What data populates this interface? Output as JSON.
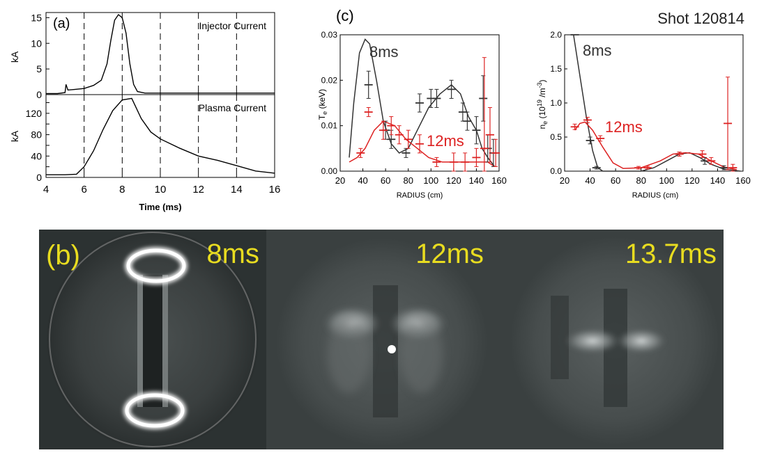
{
  "figure": {
    "shot_label": "Shot 120814"
  },
  "chart_data": [
    {
      "id": "a-top",
      "panel_label": "(a)",
      "type": "line",
      "annotation": "Injector Current",
      "ylabel": "kA",
      "xlim": [
        4,
        16
      ],
      "ylim": [
        0,
        16
      ],
      "yticks": [
        0,
        5,
        10,
        15
      ],
      "xticks": [
        4,
        6,
        8,
        10,
        12,
        14,
        16
      ],
      "vlines": [
        6,
        8,
        10,
        12,
        14
      ],
      "series": [
        {
          "values": [
            [
              4.0,
              0.2
            ],
            [
              4.6,
              0.2
            ],
            [
              5.0,
              0.4
            ],
            [
              5.05,
              2.0
            ],
            [
              5.15,
              0.9
            ],
            [
              5.5,
              1.0
            ],
            [
              6.0,
              1.2
            ],
            [
              6.5,
              1.8
            ],
            [
              6.9,
              2.8
            ],
            [
              7.2,
              6.0
            ],
            [
              7.4,
              10.5
            ],
            [
              7.6,
              14.5
            ],
            [
              7.8,
              15.6
            ],
            [
              8.0,
              15.0
            ],
            [
              8.2,
              12.0
            ],
            [
              8.4,
              6.0
            ],
            [
              8.6,
              2.0
            ],
            [
              8.8,
              0.6
            ],
            [
              9.2,
              0.3
            ],
            [
              10.0,
              0.3
            ],
            [
              12.0,
              0.3
            ],
            [
              14.0,
              0.3
            ],
            [
              16.0,
              0.3
            ]
          ]
        }
      ]
    },
    {
      "id": "a-bottom",
      "type": "line",
      "annotation": "Plasma Current",
      "ylabel": "kA",
      "xlabel": "Time (ms)",
      "xlim": [
        4,
        16
      ],
      "ylim": [
        0,
        155
      ],
      "yticks": [
        0,
        20,
        40,
        60,
        80,
        100,
        120,
        140
      ],
      "yticklabels": [
        "0",
        "",
        "40",
        "",
        "80",
        "",
        "120",
        ""
      ],
      "xticks": [
        4,
        6,
        8,
        10,
        12,
        14,
        16
      ],
      "xticklabels": [
        "4",
        "6",
        "8",
        "10",
        "12",
        "14",
        "16"
      ],
      "vlines": [
        6,
        8,
        10,
        12,
        14
      ],
      "series": [
        {
          "values": [
            [
              4.0,
              5
            ],
            [
              5.0,
              5
            ],
            [
              5.6,
              6
            ],
            [
              6.0,
              20
            ],
            [
              6.5,
              50
            ],
            [
              7.0,
              90
            ],
            [
              7.5,
              125
            ],
            [
              8.0,
              145
            ],
            [
              8.5,
              148
            ],
            [
              9.0,
              110
            ],
            [
              9.5,
              85
            ],
            [
              10.0,
              72
            ],
            [
              11.0,
              55
            ],
            [
              12.0,
              40
            ],
            [
              13.0,
              32
            ],
            [
              14.0,
              22
            ],
            [
              15.0,
              12
            ],
            [
              16.0,
              8
            ]
          ]
        }
      ]
    },
    {
      "id": "c-left",
      "panel_label": "(c)",
      "type": "line",
      "ylabel": "Te (keV)",
      "xlabel": "RADIUS (cm)",
      "xlim": [
        20,
        160
      ],
      "ylim": [
        0,
        0.03
      ],
      "xticks": [
        20,
        40,
        60,
        80,
        100,
        120,
        140,
        160
      ],
      "yticks": [
        0,
        0.01,
        0.02,
        0.03
      ],
      "yticklabels": [
        "0.00",
        "0.01",
        "0.02",
        "0.03"
      ],
      "series": [
        {
          "name": "8ms",
          "color": "#333333",
          "line": [
            [
              28,
              0.003
            ],
            [
              32,
              0.015
            ],
            [
              37,
              0.026
            ],
            [
              42,
              0.029
            ],
            [
              46,
              0.028
            ],
            [
              52,
              0.02
            ],
            [
              58,
              0.011
            ],
            [
              65,
              0.006
            ],
            [
              72,
              0.004
            ],
            [
              80,
              0.005
            ],
            [
              88,
              0.009
            ],
            [
              98,
              0.014
            ],
            [
              108,
              0.017
            ],
            [
              118,
              0.019
            ],
            [
              126,
              0.017
            ],
            [
              133,
              0.012
            ],
            [
              140,
              0.009
            ],
            [
              145,
              0.005
            ],
            [
              150,
              0.003
            ],
            [
              156,
              0.001
            ]
          ],
          "points": [
            [
              45,
              0.019,
              0.003
            ],
            [
              60,
              0.009,
              0.002
            ],
            [
              65,
              0.007,
              0.002
            ],
            [
              78,
              0.004,
              0.001
            ],
            [
              90,
              0.015,
              0.002
            ],
            [
              100,
              0.016,
              0.002
            ],
            [
              105,
              0.016,
              0.002
            ],
            [
              118,
              0.018,
              0.002
            ],
            [
              128,
              0.013,
              0.002
            ],
            [
              132,
              0.011,
              0.002
            ],
            [
              140,
              0.009,
              0.003
            ],
            [
              146,
              0.016,
              0.005
            ],
            [
              150,
              0.005,
              0.003
            ],
            [
              155,
              0.004,
              0.003
            ]
          ]
        },
        {
          "name": "12ms",
          "color": "#dd2222",
          "line": [
            [
              28,
              0.002
            ],
            [
              35,
              0.003
            ],
            [
              42,
              0.005
            ],
            [
              50,
              0.009
            ],
            [
              58,
              0.011
            ],
            [
              68,
              0.01
            ],
            [
              78,
              0.007
            ],
            [
              88,
              0.005
            ],
            [
              98,
              0.003
            ],
            [
              110,
              0.002
            ],
            [
              120,
              0.002
            ],
            [
              130,
              0.002
            ],
            [
              140,
              0.002
            ],
            [
              150,
              0.002
            ],
            [
              156,
              0.001
            ]
          ],
          "points": [
            [
              38,
              0.004,
              0.001
            ],
            [
              45,
              0.013,
              0.001
            ],
            [
              58,
              0.009,
              0.002
            ],
            [
              65,
              0.01,
              0.002
            ],
            [
              72,
              0.008,
              0.002
            ],
            [
              80,
              0.007,
              0.002
            ],
            [
              90,
              0.006,
              0.002
            ],
            [
              105,
              0.002,
              0.001
            ],
            [
              120,
              0.002,
              0.002
            ],
            [
              130,
              0.002,
              0.002
            ],
            [
              140,
              0.003,
              0.002
            ],
            [
              147,
              0.005,
              0.02
            ],
            [
              152,
              0.008,
              0.006
            ],
            [
              157,
              0.004,
              0.003
            ]
          ]
        }
      ]
    },
    {
      "id": "c-right",
      "type": "line",
      "ylabel": "ne (10^19 /m^-3)",
      "xlabel": "RADIUS (cm)",
      "xlim": [
        20,
        160
      ],
      "ylim": [
        0,
        2.0
      ],
      "xticks": [
        20,
        40,
        60,
        80,
        100,
        120,
        140,
        160
      ],
      "yticks": [
        0,
        0.5,
        1.0,
        1.5,
        2.0
      ],
      "yticklabels": [
        "0.0",
        "0.5",
        "1.0",
        "1.5",
        "2.0"
      ],
      "series": [
        {
          "name": "8ms",
          "color": "#333333",
          "line": [
            [
              27,
              2.0
            ],
            [
              32,
              1.4
            ],
            [
              37,
              0.8
            ],
            [
              42,
              0.3
            ],
            [
              46,
              0.05
            ],
            [
              50,
              0.0
            ],
            [
              60,
              0.0
            ],
            [
              80,
              0.0
            ],
            [
              90,
              0.05
            ],
            [
              100,
              0.15
            ],
            [
              110,
              0.25
            ],
            [
              118,
              0.27
            ],
            [
              126,
              0.2
            ],
            [
              135,
              0.1
            ],
            [
              145,
              0.03
            ],
            [
              158,
              0.0
            ]
          ],
          "points": [
            [
              28,
              2.0,
              0.0
            ],
            [
              40,
              0.45,
              0.05
            ],
            [
              45,
              0.05,
              0.02
            ],
            [
              110,
              0.25,
              0.03
            ],
            [
              130,
              0.15,
              0.05
            ],
            [
              145,
              0.05,
              0.03
            ]
          ]
        },
        {
          "name": "12ms",
          "color": "#dd2222",
          "line": [
            [
              28,
              0.6
            ],
            [
              32,
              0.7
            ],
            [
              36,
              0.72
            ],
            [
              42,
              0.6
            ],
            [
              50,
              0.35
            ],
            [
              58,
              0.12
            ],
            [
              66,
              0.04
            ],
            [
              80,
              0.05
            ],
            [
              95,
              0.15
            ],
            [
              105,
              0.25
            ],
            [
              115,
              0.27
            ],
            [
              125,
              0.25
            ],
            [
              135,
              0.15
            ],
            [
              145,
              0.06
            ],
            [
              155,
              0.02
            ]
          ],
          "points": [
            [
              28,
              0.65,
              0.04
            ],
            [
              38,
              0.75,
              0.04
            ],
            [
              48,
              0.48,
              0.04
            ],
            [
              78,
              0.05,
              0.02
            ],
            [
              85,
              0.05,
              0.02
            ],
            [
              110,
              0.25,
              0.03
            ],
            [
              128,
              0.25,
              0.05
            ],
            [
              135,
              0.15,
              0.05
            ],
            [
              148,
              0.7,
              0.68
            ],
            [
              152,
              0.05,
              0.05
            ]
          ]
        }
      ]
    }
  ],
  "images": [
    {
      "id": "img-8ms",
      "panel_label": "(b)",
      "time_label": "8ms"
    },
    {
      "id": "img-12ms",
      "time_label": "12ms"
    },
    {
      "id": "img-13-7ms",
      "time_label": "13.7ms"
    }
  ]
}
